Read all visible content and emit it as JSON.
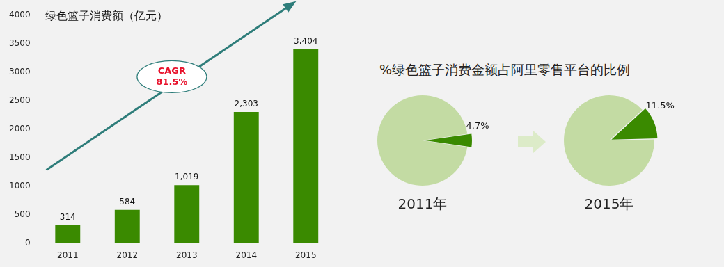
{
  "chart_data": [
    {
      "type": "bar",
      "title": "绿色篮子消费额（亿元）",
      "categories": [
        "2011",
        "2012",
        "2013",
        "2014",
        "2015"
      ],
      "values": [
        314,
        584,
        1019,
        2303,
        3404
      ],
      "value_labels": [
        "314",
        "584",
        "1,019",
        "2,303",
        "3,404"
      ],
      "data_labels": true,
      "color": "#3a8a00",
      "ylim": [
        0,
        4000
      ],
      "yticks": [
        0,
        500,
        1000,
        1500,
        2000,
        2500,
        3000,
        3500,
        4000
      ],
      "grid": false,
      "annotations": [
        {
          "text": [
            "CAGR",
            "81.5%"
          ]
        }
      ]
    },
    {
      "type": "pie",
      "title": "%绿色篮子消费金额占阿里零售平台的比例",
      "subtitle": "2011年",
      "values": [
        95.3,
        4.7
      ],
      "value_labels": [
        null,
        "4.7%"
      ],
      "data_labels": true,
      "colors": [
        "#c3dba3",
        "#3a8a00"
      ]
    },
    {
      "type": "pie",
      "subtitle": "2015年",
      "values": [
        88.5,
        11.5
      ],
      "value_labels": [
        null,
        "11.5%"
      ],
      "data_labels": true,
      "colors": [
        "#c3dba3",
        "#3a8a00"
      ]
    }
  ]
}
